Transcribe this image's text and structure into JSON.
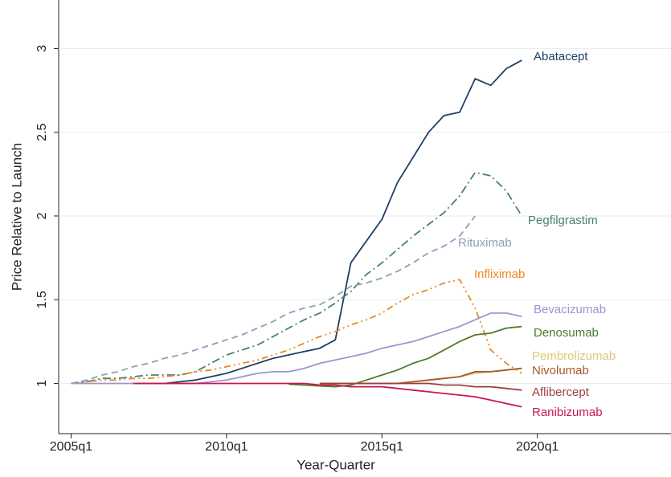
{
  "chart_data": {
    "type": "line",
    "x_label": "Year-Quarter",
    "y_label": "Price Relative to Launch",
    "x": [
      2005,
      2005.5,
      2006,
      2006.5,
      2007,
      2007.5,
      2008,
      2008.5,
      2009,
      2009.5,
      2010,
      2010.5,
      2011,
      2011.5,
      2012,
      2012.5,
      2013,
      2013.5,
      2014,
      2014.5,
      2015,
      2015.5,
      2016,
      2016.5,
      2017,
      2017.5,
      2018,
      2018.5,
      2019,
      2019.5
    ],
    "xlim": [
      2004.6,
      2024.3
    ],
    "xticks": [
      {
        "value": 2005,
        "label": "2005q1"
      },
      {
        "value": 2010,
        "label": "2010q1"
      },
      {
        "value": 2015,
        "label": "2015q1"
      },
      {
        "value": 2020,
        "label": "2020q1"
      }
    ],
    "ylim": [
      0.7,
      3.29
    ],
    "yticks": [
      1,
      1.5,
      2,
      2.5,
      3
    ],
    "grid": true,
    "series": [
      {
        "name": "Abatacept",
        "color": "#1f3f66",
        "values": [
          null,
          null,
          null,
          null,
          1.0,
          1.0,
          1.0,
          1.01,
          1.02,
          1.04,
          1.06,
          1.09,
          1.12,
          1.15,
          1.17,
          1.19,
          1.21,
          1.26,
          1.72,
          1.85,
          1.98,
          2.2,
          2.35,
          2.5,
          2.6,
          2.62,
          2.82,
          2.78,
          2.88,
          2.93
        ]
      },
      {
        "name": "Pegfilgrastim",
        "color": "#4a7f74",
        "values": [
          1.0,
          1.01,
          1.03,
          1.03,
          1.04,
          1.05,
          1.05,
          1.05,
          1.07,
          1.12,
          1.17,
          1.2,
          1.23,
          1.28,
          1.33,
          1.38,
          1.42,
          1.48,
          1.55,
          1.65,
          1.72,
          1.8,
          1.88,
          1.95,
          2.02,
          2.12,
          2.26,
          2.24,
          2.15,
          2.0
        ]
      },
      {
        "name": "Rituximab",
        "color": "#8ba0b8",
        "values": [
          1.0,
          1.02,
          1.05,
          1.07,
          1.1,
          1.12,
          1.15,
          1.17,
          1.2,
          1.23,
          1.26,
          1.29,
          1.33,
          1.37,
          1.42,
          1.45,
          1.47,
          1.52,
          1.58,
          1.6,
          1.63,
          1.67,
          1.72,
          1.78,
          1.82,
          1.88,
          2.0,
          null,
          null,
          null
        ]
      },
      {
        "name": "Infliximab",
        "color": "#ea8a1e",
        "values": [
          1.0,
          1.01,
          1.02,
          1.02,
          1.03,
          1.03,
          1.04,
          1.05,
          1.07,
          1.08,
          1.1,
          1.12,
          1.14,
          1.17,
          1.2,
          1.24,
          1.28,
          1.31,
          1.35,
          1.38,
          1.42,
          1.48,
          1.53,
          1.56,
          1.6,
          1.62,
          1.45,
          1.2,
          1.12,
          1.06
        ]
      },
      {
        "name": "Bevacizumab",
        "color": "#9d94d6",
        "values": [
          1.0,
          1.0,
          1.0,
          1.0,
          1.0,
          1.0,
          1.0,
          1.0,
          1.0,
          1.01,
          1.02,
          1.04,
          1.06,
          1.07,
          1.07,
          1.09,
          1.12,
          1.14,
          1.16,
          1.18,
          1.21,
          1.23,
          1.25,
          1.28,
          1.31,
          1.34,
          1.38,
          1.42,
          1.42,
          1.4
        ]
      },
      {
        "name": "Denosumab",
        "color": "#4f7a2a",
        "values": [
          null,
          null,
          null,
          null,
          null,
          null,
          null,
          null,
          null,
          null,
          null,
          null,
          null,
          null,
          0.995,
          0.99,
          0.985,
          0.98,
          0.99,
          1.02,
          1.05,
          1.08,
          1.12,
          1.15,
          1.2,
          1.25,
          1.29,
          1.3,
          1.33,
          1.34
        ]
      },
      {
        "name": "Pembrolizumab",
        "color": "#dcc87a",
        "values": [
          null,
          null,
          null,
          null,
          null,
          null,
          null,
          null,
          null,
          null,
          null,
          null,
          null,
          null,
          null,
          null,
          null,
          null,
          null,
          null,
          1.0,
          1.0,
          1.01,
          1.02,
          1.03,
          1.04,
          1.06,
          1.07,
          1.08,
          1.09
        ]
      },
      {
        "name": "Nivolumab",
        "color": "#a65a2c",
        "values": [
          null,
          null,
          null,
          null,
          null,
          null,
          null,
          null,
          null,
          null,
          null,
          null,
          null,
          null,
          null,
          null,
          1.0,
          1.0,
          1.0,
          1.0,
          1.0,
          1.0,
          1.01,
          1.02,
          1.03,
          1.04,
          1.07,
          1.07,
          1.08,
          1.09
        ]
      },
      {
        "name": "Aflibercept",
        "color": "#9a4040",
        "values": [
          null,
          null,
          null,
          null,
          null,
          null,
          null,
          null,
          null,
          null,
          null,
          null,
          null,
          null,
          null,
          null,
          1.0,
          1.0,
          1.0,
          1.0,
          1.0,
          1.0,
          1.0,
          1.0,
          0.99,
          0.99,
          0.98,
          0.98,
          0.97,
          0.96
        ]
      },
      {
        "name": "Ranibizumab",
        "color": "#c9184a",
        "values": [
          null,
          null,
          null,
          null,
          1.0,
          1.0,
          1.0,
          1.0,
          1.0,
          1.0,
          1.0,
          1.0,
          1.0,
          1.0,
          1.0,
          1.0,
          0.99,
          0.99,
          0.98,
          0.98,
          0.98,
          0.97,
          0.96,
          0.95,
          0.94,
          0.93,
          0.92,
          0.9,
          0.88,
          0.86
        ]
      }
    ]
  }
}
